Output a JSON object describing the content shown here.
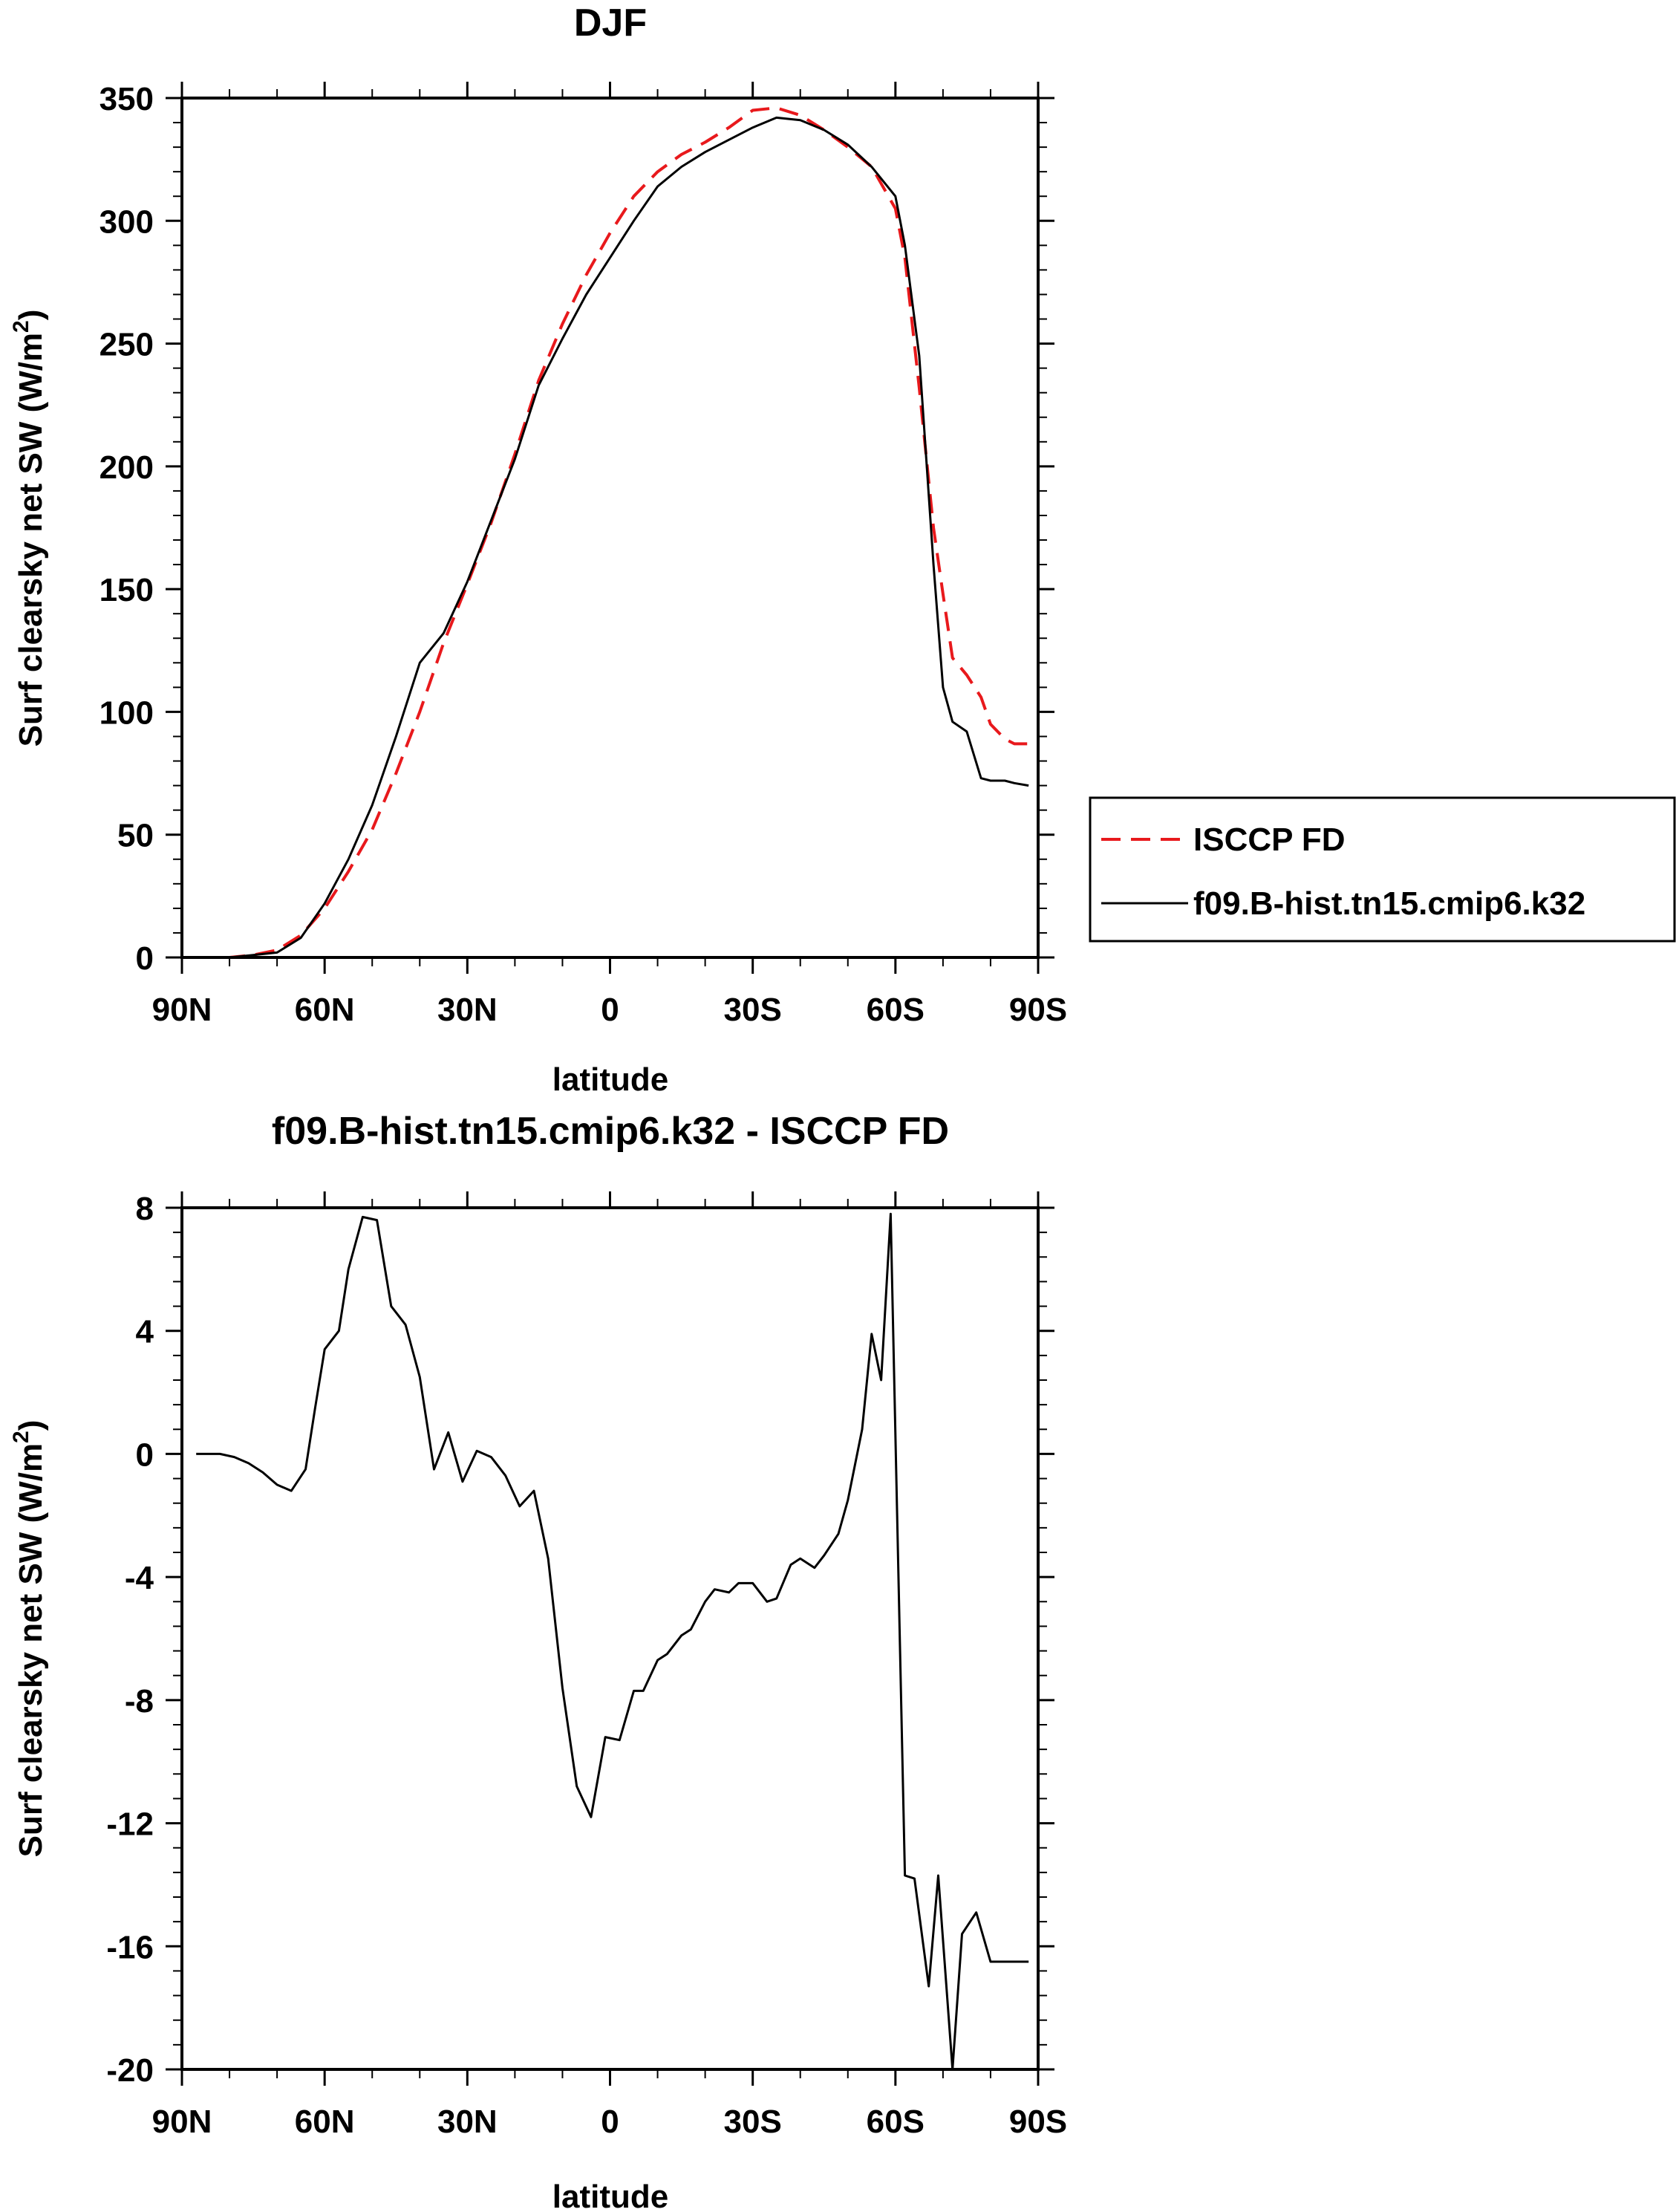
{
  "chart_data": [
    {
      "type": "line",
      "title": "DJF",
      "xlabel": "latitude",
      "ylabel": "Surf clearsky net SW (W/m",
      "ylabel_sup": "2",
      "ylabel_close": ")",
      "xlim": [
        90,
        -90
      ],
      "ylim": [
        0,
        350
      ],
      "xticks": [
        {
          "value": 90,
          "label": "90N"
        },
        {
          "value": 60,
          "label": "60N"
        },
        {
          "value": 30,
          "label": "30N"
        },
        {
          "value": 0,
          "label": "0"
        },
        {
          "value": -30,
          "label": "30S"
        },
        {
          "value": -60,
          "label": "60S"
        },
        {
          "value": -90,
          "label": "90S"
        }
      ],
      "yticks": [
        0,
        50,
        100,
        150,
        200,
        250,
        300,
        350
      ],
      "legend_position": "right",
      "series": [
        {
          "name": "ISCCP FD",
          "color": "#e8191c",
          "dash": true,
          "x": [
            87,
            80,
            75,
            70,
            65,
            60,
            55,
            50,
            45,
            40,
            35,
            30,
            25,
            20,
            15,
            10,
            5,
            0,
            -5,
            -10,
            -15,
            -20,
            -25,
            -30,
            -35,
            -40,
            -45,
            -50,
            -55,
            -60,
            -62,
            -65,
            -68,
            -70,
            -72,
            -75,
            -78,
            -80,
            -83,
            -85,
            -88
          ],
          "y": [
            0,
            0,
            1,
            3,
            9,
            20,
            35,
            52,
            75,
            100,
            128,
            152,
            177,
            205,
            235,
            258,
            278,
            295,
            310,
            320,
            327,
            332,
            338,
            345,
            346,
            343,
            337,
            330,
            322,
            305,
            285,
            232,
            175,
            148,
            122,
            115,
            106,
            95,
            89,
            87,
            87
          ]
        },
        {
          "name": "f09.B-hist.tn15.cmip6.k32",
          "color": "#000000",
          "dash": false,
          "x": [
            87,
            80,
            75,
            70,
            65,
            60,
            55,
            50,
            45,
            40,
            35,
            30,
            25,
            20,
            15,
            10,
            5,
            0,
            -5,
            -10,
            -15,
            -20,
            -25,
            -30,
            -35,
            -40,
            -45,
            -50,
            -55,
            -60,
            -62,
            -65,
            -68,
            -70,
            -72,
            -75,
            -78,
            -80,
            -83,
            -85,
            -88
          ],
          "y": [
            0,
            0,
            1,
            2,
            8,
            22,
            40,
            62,
            90,
            120,
            132,
            153,
            178,
            203,
            233,
            252,
            270,
            285,
            300,
            314,
            322,
            328,
            333,
            338,
            342,
            341,
            337,
            331,
            322,
            310,
            290,
            245,
            160,
            110,
            96,
            92,
            73,
            72,
            72,
            71,
            70
          ]
        }
      ]
    },
    {
      "type": "line",
      "title": "f09.B-hist.tn15.cmip6.k32 - ISCCP FD",
      "xlabel": "latitude",
      "ylabel": "Surf clearsky net SW (W/m",
      "ylabel_sup": "2",
      "ylabel_close": ")",
      "xlim": [
        90,
        -90
      ],
      "ylim": [
        -20,
        8
      ],
      "xticks": [
        {
          "value": 90,
          "label": "90N"
        },
        {
          "value": 60,
          "label": "60N"
        },
        {
          "value": 30,
          "label": "30N"
        },
        {
          "value": 0,
          "label": "0"
        },
        {
          "value": -30,
          "label": "30S"
        },
        {
          "value": -60,
          "label": "60S"
        },
        {
          "value": -90,
          "label": "90S"
        }
      ],
      "yticks": [
        8,
        4,
        0,
        -4,
        -8,
        -12,
        -16,
        -20
      ],
      "series": [
        {
          "color": "#000000",
          "dash": false,
          "x": [
            87,
            82,
            79,
            76,
            73,
            70,
            67,
            64,
            62,
            60,
            57,
            55,
            52,
            49,
            46,
            43,
            40,
            37,
            34,
            31,
            28,
            25,
            22,
            19,
            16,
            13,
            10,
            7,
            4,
            1,
            -2,
            -5,
            -7,
            -10,
            -12,
            -15,
            -17,
            -20,
            -22,
            -25,
            -27,
            -30,
            -33,
            -35,
            -38,
            -40,
            -43,
            -45,
            -48,
            -50,
            -53,
            -55,
            -57,
            -59,
            -62,
            -64,
            -67,
            -69,
            -72,
            -74,
            -77,
            -80,
            -82,
            -85,
            -88
          ],
          "y": [
            0,
            0,
            -0.1,
            -0.3,
            -0.6,
            -1,
            -1.2,
            -0.5,
            1.5,
            3.4,
            4,
            6,
            7.7,
            7.6,
            4.8,
            4.2,
            2.5,
            -0.5,
            0.7,
            -0.9,
            0.1,
            -0.1,
            -0.7,
            -1.7,
            -1.2,
            -3.4,
            -7.6,
            -10.8,
            -11.8,
            -9.2,
            -9.3,
            -7.7,
            -7.7,
            -6.7,
            -6.5,
            -5.9,
            -5.7,
            -4.8,
            -4.4,
            -4.5,
            -4.2,
            -4.2,
            -4.8,
            -4.7,
            -3.6,
            -3.4,
            -3.7,
            -3.3,
            -2.6,
            -1.5,
            0.8,
            3.9,
            2.4,
            7.8,
            -13.7,
            -13.8,
            -17.3,
            -13.7,
            -20,
            -15.6,
            -14.9,
            -16.5,
            -16.5,
            -16.5,
            -16.5
          ]
        }
      ]
    }
  ]
}
